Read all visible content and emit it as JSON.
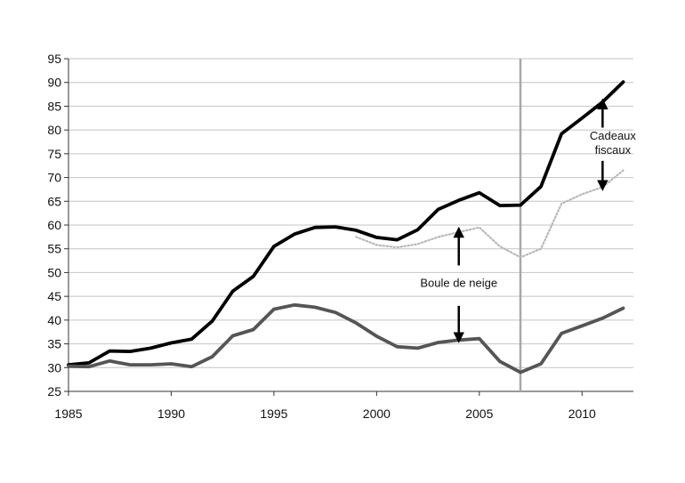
{
  "chart_data": {
    "type": "line",
    "title": "",
    "xlabel": "",
    "ylabel": "",
    "xlim": [
      1985,
      2012.5
    ],
    "ylim": [
      25,
      95
    ],
    "xticks": [
      1985,
      1990,
      1995,
      2000,
      2005,
      2010
    ],
    "yticks": [
      25,
      30,
      35,
      40,
      45,
      50,
      55,
      60,
      65,
      70,
      75,
      80,
      85,
      90,
      95
    ],
    "grid": "horizontal",
    "vertical_marker_x": 2007,
    "series": [
      {
        "color": "#000000",
        "style": "solid",
        "x": [
          1985,
          1986,
          1987,
          1988,
          1989,
          1990,
          1991,
          1992,
          1993,
          1994,
          1995,
          1996,
          1997,
          1998,
          1999,
          2000,
          2001,
          2002,
          2003,
          2004,
          2005,
          2006,
          2007,
          2008,
          2009,
          2010,
          2011,
          2012
        ],
        "values": [
          30.6,
          31.0,
          33.5,
          33.4,
          34.1,
          35.2,
          36.0,
          39.8,
          46.1,
          49.2,
          55.5,
          58.1,
          59.5,
          59.6,
          58.9,
          57.4,
          56.9,
          59.0,
          63.3,
          65.2,
          66.8,
          64.1,
          64.2,
          68.1,
          79.2,
          82.5,
          85.9,
          90.1
        ]
      },
      {
        "color": "#b8b8b8",
        "style": "dotted",
        "x": [
          1999,
          2000,
          2001,
          2002,
          2003,
          2004,
          2005,
          2006,
          2007,
          2008,
          2009,
          2010,
          2011,
          2012
        ],
        "values": [
          57.5,
          55.8,
          55.3,
          56.0,
          57.5,
          58.5,
          59.5,
          55.5,
          53.2,
          55.0,
          64.5,
          66.5,
          68.0,
          71.5
        ]
      },
      {
        "color": "#555555",
        "style": "solid",
        "x": [
          1985,
          1986,
          1987,
          1988,
          1989,
          1990,
          1991,
          1992,
          1993,
          1994,
          1995,
          1996,
          1997,
          1998,
          1999,
          2000,
          2001,
          2002,
          2003,
          2004,
          2005,
          2006,
          2007,
          2008,
          2009,
          2010,
          2011,
          2012
        ],
        "values": [
          30.3,
          30.2,
          31.4,
          30.6,
          30.6,
          30.8,
          30.2,
          32.3,
          36.7,
          38.0,
          42.3,
          43.2,
          42.7,
          41.6,
          39.4,
          36.6,
          34.4,
          34.1,
          35.3,
          35.8,
          36.1,
          31.3,
          29.0,
          30.8,
          37.2,
          38.8,
          40.4,
          42.5
        ]
      }
    ],
    "annotations": [
      {
        "text": "Boule de neige",
        "x": 2004,
        "y": 47.0
      },
      {
        "text": "Cadeaux",
        "x": 2011.5,
        "y": 78.0
      },
      {
        "text": "fiscaux",
        "x": 2011.5,
        "y": 75.0
      }
    ],
    "arrows": [
      {
        "x": 2004,
        "from": 51.5,
        "to": 58.5
      },
      {
        "x": 2004,
        "from": 43.0,
        "to": 36.3
      },
      {
        "x": 2011,
        "from": 80.5,
        "to": 85.5
      },
      {
        "x": 2011,
        "from": 73.5,
        "to": 68.3
      }
    ]
  }
}
